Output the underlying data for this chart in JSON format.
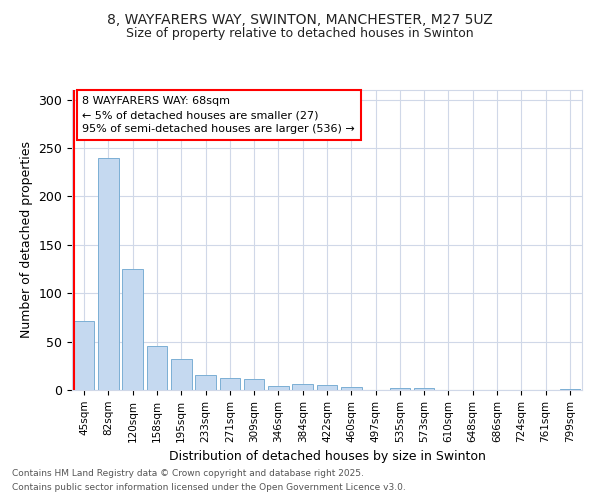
{
  "title_line1": "8, WAYFARERS WAY, SWINTON, MANCHESTER, M27 5UZ",
  "title_line2": "Size of property relative to detached houses in Swinton",
  "xlabel": "Distribution of detached houses by size in Swinton",
  "ylabel": "Number of detached properties",
  "categories": [
    "45sqm",
    "82sqm",
    "120sqm",
    "158sqm",
    "195sqm",
    "233sqm",
    "271sqm",
    "309sqm",
    "346sqm",
    "384sqm",
    "422sqm",
    "460sqm",
    "497sqm",
    "535sqm",
    "573sqm",
    "610sqm",
    "648sqm",
    "686sqm",
    "724sqm",
    "761sqm",
    "799sqm"
  ],
  "values": [
    71,
    240,
    125,
    45,
    32,
    16,
    12,
    11,
    4,
    6,
    5,
    3,
    0,
    2,
    2,
    0,
    0,
    0,
    0,
    0,
    1
  ],
  "bar_color": "#c5d9f0",
  "bar_edge_color": "#7bafd4",
  "annotation_line1": "8 WAYFARERS WAY: 68sqm",
  "annotation_line2": "← 5% of detached houses are smaller (27)",
  "annotation_line3": "95% of semi-detached houses are larger (536) →",
  "ylim": [
    0,
    310
  ],
  "yticks": [
    0,
    50,
    100,
    150,
    200,
    250,
    300
  ],
  "footer_line1": "Contains HM Land Registry data © Crown copyright and database right 2025.",
  "footer_line2": "Contains public sector information licensed under the Open Government Licence v3.0.",
  "background_color": "#ffffff",
  "grid_color": "#d0d8e8"
}
